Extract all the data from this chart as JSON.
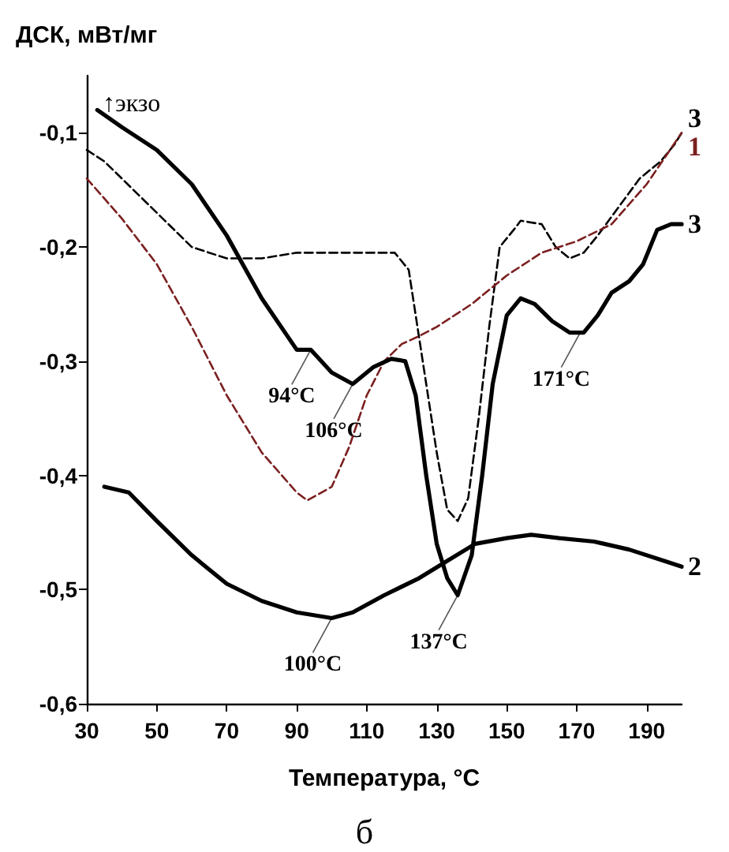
{
  "chart_data": {
    "type": "line",
    "ylabel": "ДСК, мВт/мг",
    "xlabel": "Температура, °C",
    "xlim": [
      30,
      200
    ],
    "xticks": [
      30,
      50,
      70,
      90,
      110,
      130,
      150,
      170,
      190
    ],
    "ylim": [
      -0.6,
      -0.05
    ],
    "yticks": [
      {
        "value": -0.6,
        "label": "-0,6"
      },
      {
        "value": -0.5,
        "label": "-0,5"
      },
      {
        "value": -0.4,
        "label": "-0,4"
      },
      {
        "value": -0.3,
        "label": "-0,3"
      },
      {
        "value": -0.2,
        "label": "-0,2"
      },
      {
        "value": -0.1,
        "label": "-0,1"
      }
    ],
    "grid": false,
    "legend": false,
    "marker": "none",
    "annotations": [
      "↑экзо",
      "б",
      {
        "text": "94°C",
        "x": 94,
        "y": -0.29
      },
      {
        "text": "106°C",
        "x": 106,
        "y": -0.32
      },
      {
        "text": "171°C",
        "x": 171,
        "y": -0.275
      },
      {
        "text": "100°C",
        "x": 100,
        "y": -0.525
      },
      {
        "text": "137°C",
        "x": 136,
        "y": -0.505
      }
    ],
    "series": [
      {
        "name": "3",
        "color": "#000000",
        "line_style": "dashed",
        "x": [
          30,
          35,
          40,
          50,
          60,
          70,
          80,
          90,
          100,
          110,
          118,
          122,
          126,
          130,
          133,
          136,
          139,
          142,
          145,
          148,
          152,
          154,
          160,
          164,
          168,
          172,
          176,
          182,
          188,
          194,
          198,
          200
        ],
        "values": [
          -0.115,
          -0.125,
          -0.14,
          -0.17,
          -0.2,
          -0.21,
          -0.21,
          -0.205,
          -0.205,
          -0.205,
          -0.205,
          -0.22,
          -0.3,
          -0.38,
          -0.43,
          -0.44,
          -0.42,
          -0.35,
          -0.27,
          -0.2,
          -0.185,
          -0.177,
          -0.18,
          -0.2,
          -0.21,
          -0.205,
          -0.19,
          -0.165,
          -0.14,
          -0.125,
          -0.11,
          -0.1
        ]
      },
      {
        "name": "1",
        "color": "#7b1f1f",
        "line_style": "dashed",
        "x": [
          30,
          40,
          50,
          60,
          70,
          80,
          90,
          93,
          100,
          105,
          110,
          115,
          120,
          125,
          130,
          140,
          150,
          160,
          170,
          180,
          190,
          196,
          200
        ],
        "values": [
          -0.14,
          -0.175,
          -0.215,
          -0.27,
          -0.33,
          -0.38,
          -0.415,
          -0.422,
          -0.41,
          -0.375,
          -0.33,
          -0.3,
          -0.285,
          -0.278,
          -0.27,
          -0.25,
          -0.225,
          -0.205,
          -0.195,
          -0.18,
          -0.145,
          -0.118,
          -0.1
        ]
      },
      {
        "name": "3",
        "color": "#000000",
        "line_style": "solid",
        "x": [
          33,
          40,
          50,
          60,
          70,
          80,
          90,
          94,
          100,
          106,
          112,
          117,
          121,
          124,
          127,
          130,
          133,
          136,
          140,
          143,
          146,
          150,
          154,
          158,
          163,
          168,
          172,
          176,
          180,
          185,
          189,
          193,
          197,
          200
        ],
        "values": [
          -0.08,
          -0.095,
          -0.115,
          -0.145,
          -0.19,
          -0.245,
          -0.29,
          -0.29,
          -0.31,
          -0.32,
          -0.305,
          -0.298,
          -0.3,
          -0.33,
          -0.4,
          -0.46,
          -0.49,
          -0.505,
          -0.47,
          -0.4,
          -0.32,
          -0.26,
          -0.245,
          -0.25,
          -0.265,
          -0.275,
          -0.275,
          -0.26,
          -0.24,
          -0.23,
          -0.215,
          -0.185,
          -0.18,
          -0.18
        ]
      },
      {
        "name": "2",
        "color": "#000000",
        "line_style": "solid",
        "x": [
          35,
          42,
          50,
          60,
          70,
          80,
          90,
          100,
          106,
          115,
          125,
          133,
          141,
          150,
          157,
          165,
          175,
          185,
          195,
          200
        ],
        "values": [
          -0.41,
          -0.415,
          -0.44,
          -0.47,
          -0.495,
          -0.51,
          -0.52,
          -0.525,
          -0.52,
          -0.505,
          -0.49,
          -0.475,
          -0.46,
          -0.455,
          -0.452,
          -0.455,
          -0.458,
          -0.465,
          -0.475,
          -0.48
        ]
      }
    ]
  }
}
